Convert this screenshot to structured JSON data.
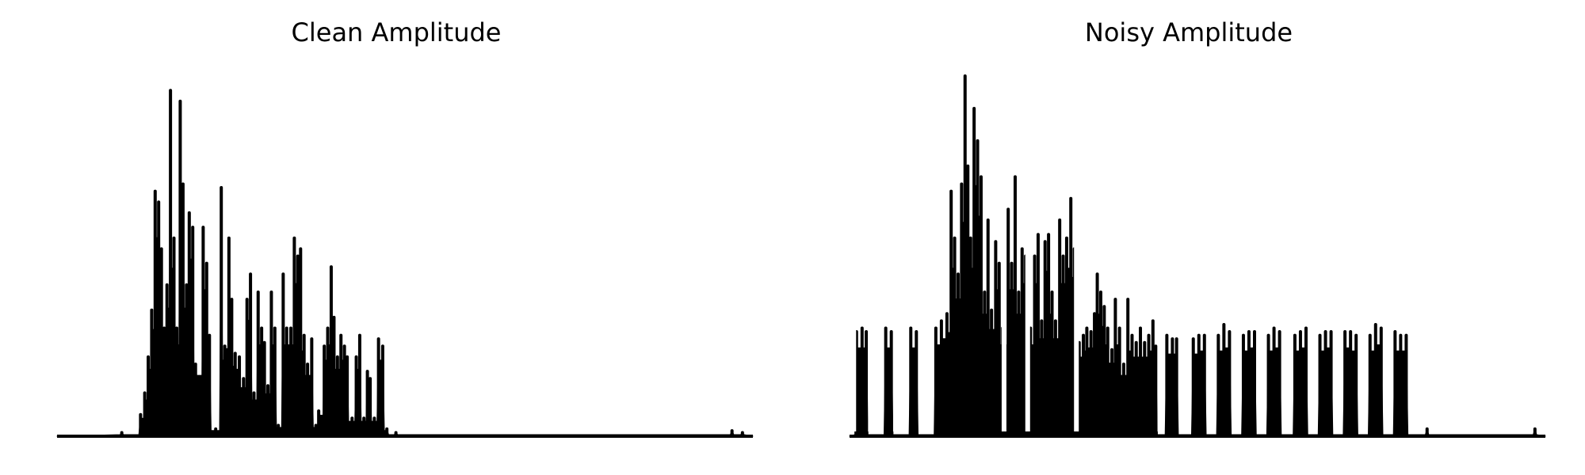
{
  "chart_data": [
    {
      "type": "line",
      "title": "Clean Amplitude",
      "xlabel": "",
      "ylabel": "",
      "axes_visible": false,
      "grid": false,
      "color": "#000000",
      "ylim": [
        0,
        1.0
      ],
      "x_extent": [
        0,
        1
      ],
      "peaks": [
        [
          0.093,
          0.01
        ],
        [
          0.12,
          0.06
        ],
        [
          0.126,
          0.12
        ],
        [
          0.131,
          0.22
        ],
        [
          0.136,
          0.35
        ],
        [
          0.141,
          0.68
        ],
        [
          0.146,
          0.65
        ],
        [
          0.15,
          0.52
        ],
        [
          0.154,
          0.3
        ],
        [
          0.158,
          0.42
        ],
        [
          0.163,
          0.96
        ],
        [
          0.168,
          0.55
        ],
        [
          0.172,
          0.3
        ],
        [
          0.177,
          0.93
        ],
        [
          0.181,
          0.7
        ],
        [
          0.186,
          0.42
        ],
        [
          0.19,
          0.62
        ],
        [
          0.195,
          0.58
        ],
        [
          0.199,
          0.2
        ],
        [
          0.21,
          0.58
        ],
        [
          0.215,
          0.48
        ],
        [
          0.219,
          0.28
        ],
        [
          0.228,
          0.02
        ],
        [
          0.236,
          0.69
        ],
        [
          0.241,
          0.25
        ],
        [
          0.244,
          0.24
        ],
        [
          0.247,
          0.55
        ],
        [
          0.251,
          0.38
        ],
        [
          0.256,
          0.23
        ],
        [
          0.262,
          0.22
        ],
        [
          0.268,
          0.16
        ],
        [
          0.273,
          0.38
        ],
        [
          0.278,
          0.45
        ],
        [
          0.283,
          0.12
        ],
        [
          0.289,
          0.4
        ],
        [
          0.294,
          0.3
        ],
        [
          0.298,
          0.26
        ],
        [
          0.303,
          0.14
        ],
        [
          0.308,
          0.4
        ],
        [
          0.313,
          0.3
        ],
        [
          0.318,
          0.03
        ],
        [
          0.325,
          0.45
        ],
        [
          0.33,
          0.3
        ],
        [
          0.336,
          0.3
        ],
        [
          0.341,
          0.55
        ],
        [
          0.346,
          0.5
        ],
        [
          0.35,
          0.52
        ],
        [
          0.355,
          0.28
        ],
        [
          0.36,
          0.2
        ],
        [
          0.366,
          0.27
        ],
        [
          0.372,
          0.03
        ],
        [
          0.376,
          0.07
        ],
        [
          0.384,
          0.25
        ],
        [
          0.389,
          0.3
        ],
        [
          0.394,
          0.47
        ],
        [
          0.398,
          0.33
        ],
        [
          0.403,
          0.22
        ],
        [
          0.408,
          0.28
        ],
        [
          0.413,
          0.25
        ],
        [
          0.417,
          0.22
        ],
        [
          0.424,
          0.05
        ],
        [
          0.43,
          0.22
        ],
        [
          0.435,
          0.28
        ],
        [
          0.441,
          0.05
        ],
        [
          0.446,
          0.18
        ],
        [
          0.45,
          0.16
        ],
        [
          0.456,
          0.05
        ],
        [
          0.462,
          0.27
        ],
        [
          0.468,
          0.25
        ],
        [
          0.474,
          0.02
        ],
        [
          0.487,
          0.01
        ],
        [
          0.97,
          0.015
        ],
        [
          0.985,
          0.01
        ]
      ]
    },
    {
      "type": "line",
      "title": "Noisy Amplitude",
      "xlabel": "",
      "ylabel": "",
      "axes_visible": false,
      "grid": false,
      "color": "#000000",
      "ylim": [
        0,
        1.0
      ],
      "x_extent": [
        0,
        1
      ],
      "peaks": [
        [
          0.01,
          0.29
        ],
        [
          0.018,
          0.3
        ],
        [
          0.024,
          0.29
        ],
        [
          0.052,
          0.3
        ],
        [
          0.06,
          0.29
        ],
        [
          0.088,
          0.3
        ],
        [
          0.096,
          0.29
        ],
        [
          0.124,
          0.3
        ],
        [
          0.132,
          0.32
        ],
        [
          0.14,
          0.34
        ],
        [
          0.146,
          0.68
        ],
        [
          0.151,
          0.55
        ],
        [
          0.156,
          0.45
        ],
        [
          0.161,
          0.7
        ],
        [
          0.166,
          1.0
        ],
        [
          0.17,
          0.75
        ],
        [
          0.174,
          0.55
        ],
        [
          0.179,
          0.91
        ],
        [
          0.184,
          0.82
        ],
        [
          0.189,
          0.72
        ],
        [
          0.194,
          0.4
        ],
        [
          0.199,
          0.6
        ],
        [
          0.204,
          0.35
        ],
        [
          0.21,
          0.54
        ],
        [
          0.215,
          0.48
        ],
        [
          0.22,
          0.3
        ],
        [
          0.228,
          0.63
        ],
        [
          0.233,
          0.48
        ],
        [
          0.238,
          0.72
        ],
        [
          0.243,
          0.4
        ],
        [
          0.248,
          0.52
        ],
        [
          0.253,
          0.5
        ],
        [
          0.26,
          0.3
        ],
        [
          0.266,
          0.5
        ],
        [
          0.271,
          0.56
        ],
        [
          0.276,
          0.32
        ],
        [
          0.281,
          0.54
        ],
        [
          0.286,
          0.56
        ],
        [
          0.291,
          0.4
        ],
        [
          0.296,
          0.32
        ],
        [
          0.302,
          0.6
        ],
        [
          0.307,
          0.5
        ],
        [
          0.312,
          0.55
        ],
        [
          0.318,
          0.66
        ],
        [
          0.323,
          0.52
        ],
        [
          0.33,
          0.26
        ],
        [
          0.336,
          0.28
        ],
        [
          0.341,
          0.3
        ],
        [
          0.347,
          0.29
        ],
        [
          0.352,
          0.34
        ],
        [
          0.356,
          0.45
        ],
        [
          0.361,
          0.4
        ],
        [
          0.366,
          0.36
        ],
        [
          0.371,
          0.3
        ],
        [
          0.377,
          0.24
        ],
        [
          0.382,
          0.38
        ],
        [
          0.388,
          0.3
        ],
        [
          0.394,
          0.2
        ],
        [
          0.4,
          0.38
        ],
        [
          0.406,
          0.28
        ],
        [
          0.412,
          0.26
        ],
        [
          0.418,
          0.3
        ],
        [
          0.424,
          0.26
        ],
        [
          0.43,
          0.28
        ],
        [
          0.436,
          0.32
        ],
        [
          0.44,
          0.25
        ],
        [
          0.456,
          0.28
        ],
        [
          0.464,
          0.27
        ],
        [
          0.47,
          0.27
        ],
        [
          0.494,
          0.27
        ],
        [
          0.502,
          0.28
        ],
        [
          0.51,
          0.28
        ],
        [
          0.53,
          0.28
        ],
        [
          0.538,
          0.31
        ],
        [
          0.546,
          0.29
        ],
        [
          0.566,
          0.28
        ],
        [
          0.574,
          0.29
        ],
        [
          0.582,
          0.29
        ],
        [
          0.602,
          0.28
        ],
        [
          0.61,
          0.3
        ],
        [
          0.618,
          0.29
        ],
        [
          0.64,
          0.28
        ],
        [
          0.648,
          0.29
        ],
        [
          0.656,
          0.3
        ],
        [
          0.676,
          0.28
        ],
        [
          0.684,
          0.29
        ],
        [
          0.692,
          0.29
        ],
        [
          0.712,
          0.29
        ],
        [
          0.72,
          0.29
        ],
        [
          0.728,
          0.28
        ],
        [
          0.748,
          0.28
        ],
        [
          0.756,
          0.31
        ],
        [
          0.764,
          0.3
        ],
        [
          0.784,
          0.29
        ],
        [
          0.792,
          0.28
        ],
        [
          0.8,
          0.28
        ],
        [
          0.83,
          0.02
        ],
        [
          0.985,
          0.02
        ]
      ],
      "gaps": [
        0.006,
        0.03,
        0.04,
        0.066,
        0.076,
        0.104,
        0.116,
        0.222,
        0.256,
        0.326,
        0.446,
        0.486,
        0.518,
        0.556,
        0.592,
        0.63,
        0.666,
        0.702,
        0.738,
        0.774,
        0.812
      ]
    }
  ]
}
